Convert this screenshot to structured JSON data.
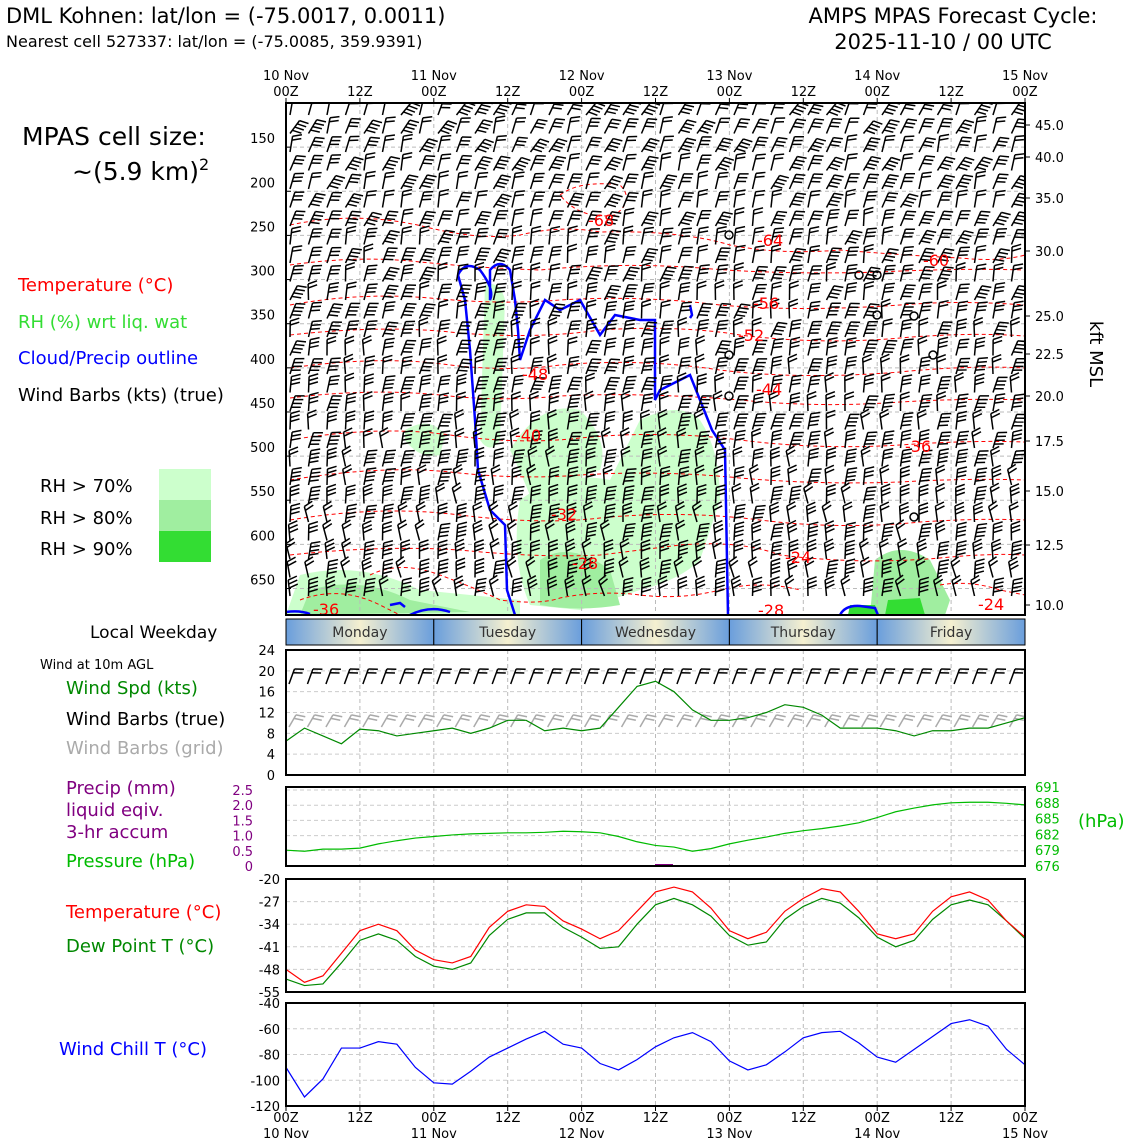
{
  "header": {
    "title_left": "DML Kohnen: lat/lon = (-75.0017, 0.0011)",
    "subtitle_left": "Nearest cell 527337: lat/lon = (-75.0085, 359.9391)",
    "title_right_1": "AMPS MPAS Forecast Cycle:",
    "title_right_2": "2025-11-10 / 00 UTC"
  },
  "sidebar": {
    "cell_size_1": "MPAS cell size:",
    "cell_size_2": "~(5.9 km)",
    "cell_size_sup": "2",
    "legend_temp": "Temperature (°C)",
    "legend_rh": "RH (%) wrt liq. wat",
    "legend_cloud": "Cloud/Precip outline",
    "legend_wind": "Wind Barbs (kts) (true)",
    "rh70": "RH > 70%",
    "rh80": "RH > 80%",
    "rh90": "RH > 90%",
    "local_weekday": "Local Weekday",
    "wind_10m": "Wind at 10m AGL",
    "wind_spd": "Wind Spd (kts)",
    "wind_barbs_true": "Wind Barbs (true)",
    "wind_barbs_grid": "Wind Barbs (grid)",
    "precip_1": "Precip (mm)",
    "precip_2": "liquid eqiv.",
    "precip_3": "3-hr accum",
    "pressure": "Pressure (hPa)",
    "temperature": "Temperature (°C)",
    "dewpoint": "Dew Point T (°C)",
    "windchill": "Wind Chill T (°C)"
  },
  "colors": {
    "temp": "#ff0000",
    "rh": "#33dd33",
    "cloud": "#0000ff",
    "green": "#008800",
    "purple": "#800080",
    "grid_gray": "#aaaaaa",
    "rh70": "#ccffcc",
    "rh80": "#a0eea0",
    "rh90": "#33dd33",
    "day_blue": "#6a9edc",
    "day_cream": "#f5f0d0"
  },
  "chart_data": {
    "time_axis": {
      "top_days": [
        "10 Nov",
        "11 Nov",
        "12 Nov",
        "13 Nov",
        "14 Nov",
        "15 Nov"
      ],
      "hour_labels": [
        "00Z",
        "12Z",
        "00Z",
        "12Z",
        "00Z",
        "12Z",
        "00Z",
        "12Z",
        "00Z",
        "12Z",
        "00Z"
      ],
      "range_hours": [
        0,
        120
      ]
    },
    "weekdays": [
      "Monday",
      "Tuesday",
      "Wednesday",
      "Thursday",
      "Friday"
    ],
    "profile": {
      "type": "contour",
      "ylabel": "kft MSL",
      "pressure_ticks": [
        "150",
        "200",
        "250",
        "300",
        "350",
        "400",
        "450",
        "500",
        "550",
        "600",
        "650"
      ],
      "pressure_range_hpa": [
        100,
        680
      ],
      "height_ticks": [
        "45.0",
        "40.0",
        "35.0",
        "30.0",
        "25.0",
        "22.5",
        "20.0",
        "17.5",
        "15.0",
        "12.5",
        "10.0"
      ],
      "temperature_labels": [
        "-68",
        "-64",
        "-60",
        "-56",
        "-52",
        "-48",
        "-44",
        "-40",
        "-36",
        "-32",
        "-28",
        "-24",
        "-28",
        "-36",
        "-24"
      ]
    },
    "wind_speed": {
      "type": "line",
      "yticks": [
        "0",
        "4",
        "8",
        "12",
        "16",
        "20",
        "24"
      ],
      "ylim": [
        0,
        24
      ],
      "x": [
        0,
        3,
        6,
        9,
        12,
        15,
        18,
        21,
        24,
        27,
        30,
        33,
        36,
        39,
        42,
        45,
        48,
        51,
        54,
        57,
        60,
        63,
        66,
        69,
        72,
        75,
        78,
        81,
        84,
        87,
        90,
        93,
        96,
        99,
        102,
        105,
        108,
        111,
        114,
        117,
        120
      ],
      "values": [
        6.5,
        9,
        7.5,
        6,
        8.8,
        8.5,
        7.5,
        8,
        8.5,
        9,
        8,
        9,
        10.5,
        10.5,
        8.5,
        9,
        8.5,
        9,
        13,
        17,
        18,
        16,
        12.5,
        10.5,
        10.5,
        11,
        12,
        13.5,
        13,
        11.5,
        9,
        9,
        9,
        8.5,
        7.5,
        8.5,
        8.5,
        9,
        9,
        10,
        11
      ]
    },
    "pressure": {
      "type": "line",
      "left_label": "Precip (mm)",
      "precip_yticks": [
        "0",
        "0.5",
        "1.0",
        "1.5",
        "2.0",
        "2.5"
      ],
      "pressure_yticks": [
        "676",
        "679",
        "682",
        "685",
        "688",
        "691"
      ],
      "pressure_unit": "(hPa)",
      "ylim": [
        676,
        691
      ],
      "x": [
        0,
        3,
        6,
        9,
        12,
        15,
        18,
        21,
        24,
        27,
        30,
        33,
        36,
        39,
        42,
        45,
        48,
        51,
        54,
        57,
        60,
        63,
        66,
        69,
        72,
        75,
        78,
        81,
        84,
        87,
        90,
        93,
        96,
        99,
        102,
        105,
        108,
        111,
        114,
        117,
        120
      ],
      "values": [
        679,
        678.8,
        679.2,
        679.2,
        679.4,
        680.2,
        680.8,
        681.3,
        681.6,
        681.9,
        682.1,
        682.2,
        682.3,
        682.3,
        682.4,
        682.6,
        682.5,
        682.3,
        681.6,
        680.6,
        679.9,
        679.6,
        678.8,
        679.3,
        680.2,
        680.9,
        681.5,
        682.2,
        682.7,
        683.1,
        683.6,
        684.2,
        685.2,
        686.3,
        687,
        687.6,
        688,
        688.1,
        688.1,
        687.9,
        687.6
      ]
    },
    "temperature": {
      "type": "line",
      "yticks": [
        "-20",
        "-27",
        "-34",
        "-41",
        "-48",
        "-55"
      ],
      "ylim": [
        -55,
        -20
      ],
      "x": [
        0,
        3,
        6,
        9,
        12,
        15,
        18,
        21,
        24,
        27,
        30,
        33,
        36,
        39,
        42,
        45,
        48,
        51,
        54,
        57,
        60,
        63,
        66,
        69,
        72,
        75,
        78,
        81,
        84,
        87,
        90,
        93,
        96,
        99,
        102,
        105,
        108,
        111,
        114,
        117,
        120
      ],
      "series": [
        {
          "name": "Temperature",
          "values": [
            -48,
            -52,
            -50,
            -43,
            -36,
            -34,
            -36,
            -42,
            -45,
            -46,
            -44,
            -35,
            -30,
            -28,
            -28.5,
            -33,
            -35.5,
            -38.5,
            -36,
            -30,
            -24,
            -22.5,
            -24,
            -29,
            -36,
            -38.5,
            -36.5,
            -30,
            -26,
            -23,
            -24,
            -30,
            -37,
            -38.5,
            -37,
            -30,
            -25.5,
            -24,
            -26.5,
            -33,
            -38
          ]
        },
        {
          "name": "Dew Point",
          "values": [
            -51,
            -53,
            -52.5,
            -46,
            -39,
            -37,
            -39,
            -44,
            -47,
            -48,
            -46,
            -37.5,
            -32.5,
            -30.5,
            -30.5,
            -35,
            -38,
            -41.5,
            -41,
            -34,
            -28,
            -26,
            -28,
            -31.5,
            -37.5,
            -40.5,
            -39.5,
            -32.5,
            -28.5,
            -26,
            -27.5,
            -32,
            -38,
            -41,
            -39,
            -32.5,
            -28,
            -26.5,
            -28,
            -33,
            -38.5
          ]
        }
      ]
    },
    "wind_chill": {
      "type": "line",
      "yticks": [
        "-40",
        "-60",
        "-80",
        "-100",
        "-120"
      ],
      "ylim": [
        -120,
        -40
      ],
      "x": [
        0,
        3,
        6,
        9,
        12,
        15,
        18,
        21,
        24,
        27,
        30,
        33,
        36,
        39,
        42,
        45,
        48,
        51,
        54,
        57,
        60,
        63,
        66,
        69,
        72,
        75,
        78,
        81,
        84,
        87,
        90,
        93,
        96,
        99,
        102,
        105,
        108,
        111,
        114,
        117,
        120
      ],
      "values": [
        -90,
        -113,
        -99,
        -75,
        -75,
        -70,
        -72,
        -90,
        -102,
        -103,
        -93,
        -82,
        -75,
        -68,
        -62,
        -72,
        -75,
        -87,
        -92,
        -84,
        -74,
        -67,
        -63,
        -70,
        -85,
        -92,
        -88,
        -78,
        -67,
        -63,
        -62,
        -71,
        -82,
        -86,
        -76,
        -66,
        -56,
        -53,
        -58,
        -76,
        -88
      ]
    }
  }
}
